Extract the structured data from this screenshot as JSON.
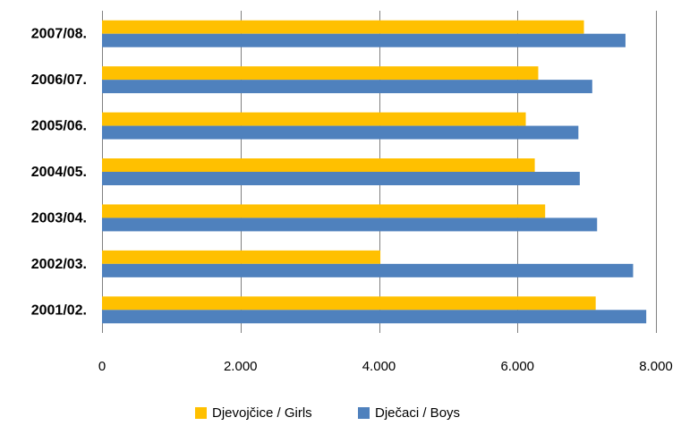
{
  "chart_data": {
    "type": "bar",
    "orientation": "horizontal",
    "categories": [
      "2007/08.",
      "2006/07.",
      "2005/06.",
      "2004/05.",
      "2003/04.",
      "2002/03.",
      "2001/02."
    ],
    "series": [
      {
        "name": "Djevojčice / Girls",
        "color": "#FFC000",
        "values": [
          6960,
          6300,
          6120,
          6250,
          6400,
          4020,
          7130
        ]
      },
      {
        "name": "Dječaci / Boys",
        "color": "#4F81BD",
        "values": [
          7560,
          7080,
          6880,
          6900,
          7150,
          7670,
          7860
        ]
      }
    ],
    "xlim": [
      0,
      8000
    ],
    "xticks": [
      0,
      2000,
      4000,
      6000,
      8000
    ],
    "xtick_labels": [
      "0",
      "2.000",
      "4.000",
      "6.000",
      "8.000"
    ],
    "title": "",
    "xlabel": "",
    "ylabel": "",
    "grid": "vertical",
    "legend_position": "bottom"
  }
}
